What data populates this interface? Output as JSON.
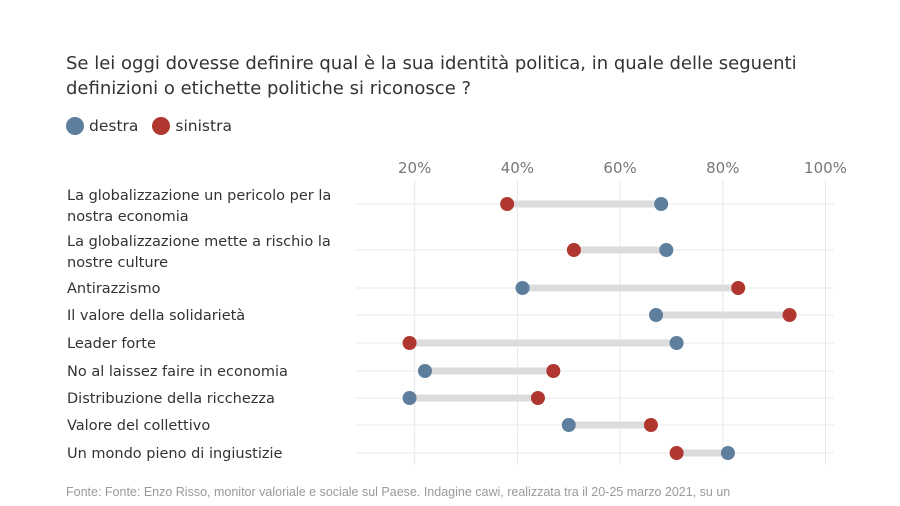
{
  "title": "Se lei oggi dovesse definire qual è la sua identità politica, in quale delle seguenti definizioni o etichette politiche si riconosce ?",
  "source": "Fonte: Fonte: Enzo Risso, monitor valoriale e sociale sul Paese. Indagine cawi, realizzata tra il 20-25 marzo 2021, su un",
  "colors": {
    "destra": "#5e7e9e",
    "sinistra": "#b0372f",
    "connector": "#dcdcdc",
    "grid": "#e8e8e8"
  },
  "legend": [
    {
      "key": "destra",
      "label": "destra"
    },
    {
      "key": "sinistra",
      "label": "sinistra"
    }
  ],
  "chart_data": {
    "type": "dumbbell",
    "title": "Se lei oggi dovesse definire qual è la sua identità politica, in quale delle seguenti definizioni o etichette politiche si riconosce ?",
    "xlabel": "",
    "ylabel": "",
    "x_ticks": [
      20,
      40,
      60,
      80,
      100
    ],
    "x_tick_labels": [
      "20%",
      "40%",
      "60%",
      "80%",
      "100%"
    ],
    "xlim": [
      0,
      100
    ],
    "grid": true,
    "legend_position": "top-left",
    "categories": [
      [
        "La globalizzazione un pericolo per la",
        "nostra economia"
      ],
      [
        "La globalizzazione mette a rischio la",
        "nostre culture"
      ],
      [
        "Antirazzismo"
      ],
      [
        "Il valore della solidarietà"
      ],
      [
        "Leader forte"
      ],
      [
        "No al laissez faire in economia"
      ],
      [
        "Distribuzione della ricchezza"
      ],
      [
        "Valore del collettivo"
      ],
      [
        "Un mondo pieno di ingiustizie"
      ]
    ],
    "series": [
      {
        "name": "destra",
        "values": [
          68,
          69,
          41,
          67,
          71,
          22,
          19,
          50,
          81
        ]
      },
      {
        "name": "sinistra",
        "values": [
          38,
          51,
          83,
          93,
          19,
          47,
          44,
          66,
          71
        ]
      }
    ]
  }
}
